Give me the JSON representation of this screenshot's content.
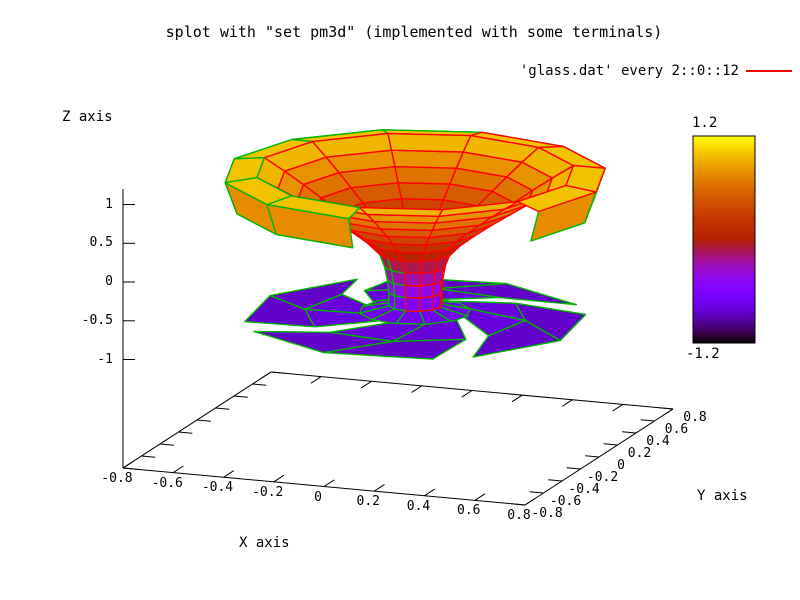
{
  "main": {
    "title": "splot with \"set pm3d\" (implemented with some terminals)"
  },
  "legend": {
    "label": "'glass.dat' every 2::0::12",
    "line_color": "#ff0000"
  },
  "axes": {
    "x": {
      "label": "X axis",
      "range": [
        -0.8,
        0.8
      ],
      "ticks": [
        -0.8,
        -0.6,
        -0.4,
        -0.2,
        0,
        0.2,
        0.4,
        0.6,
        0.8
      ],
      "tick_labels": [
        "-0.8",
        "-0.6",
        "-0.4",
        "-0.2",
        "0",
        "0.2",
        "0.4",
        "0.6",
        "0.8"
      ]
    },
    "y": {
      "label": "Y axis",
      "range": [
        -0.8,
        0.8
      ],
      "ticks": [
        -0.8,
        -0.6,
        -0.4,
        -0.2,
        0,
        0.2,
        0.4,
        0.6,
        0.8
      ],
      "tick_labels": [
        "-0.8",
        "-0.6",
        "-0.4",
        "-0.2",
        "0",
        "0.2",
        "0.4",
        "0.6",
        "0.8"
      ]
    },
    "z": {
      "label": "Z axis",
      "range": [
        -1.2,
        1.2
      ],
      "ticks": [
        -1,
        -0.5,
        0,
        0.5,
        1
      ],
      "tick_labels": [
        "-1",
        "-0.5",
        "0",
        "0.5",
        "1"
      ]
    }
  },
  "colorbar": {
    "max_label": "1.2",
    "min_label": "-1.2",
    "range": [
      -1.2,
      1.2
    ],
    "palette": "pm3d rgbformulae 7,5,15 (black-blue-violet-red-yellow)"
  },
  "chart_data": {
    "type": "surface3d",
    "title": "splot with \"set pm3d\" (implemented with some terminals)",
    "source_label": "'glass.dat' every 2::0::12",
    "zrange": [
      -1.2,
      1.2
    ],
    "grid": false,
    "legend_position": "top-right",
    "segments": 12,
    "center": [
      0.05,
      0.05
    ],
    "mesh_colors": {
      "inner": "#ff0000",
      "outer": "#00b400"
    },
    "bowl_profile": [
      [
        1.02,
        0.6
      ],
      [
        0.87,
        0.52
      ],
      [
        0.72,
        0.445
      ],
      [
        0.57,
        0.375
      ],
      [
        0.42,
        0.305
      ],
      [
        0.27,
        0.24
      ],
      [
        0.12,
        0.18
      ],
      [
        -0.03,
        0.135
      ],
      [
        -0.2,
        0.115
      ],
      [
        -0.37,
        0.105
      ],
      [
        -0.53,
        0.1
      ],
      [
        -0.7,
        0.1
      ]
    ],
    "lip_profile": [
      [
        1.02,
        0.6
      ],
      [
        0.97,
        0.72
      ],
      [
        0.56,
        0.675
      ]
    ],
    "lip_gap_deg": [
      270,
      330
    ],
    "base_ring": [
      [
        -0.7,
        0.1
      ],
      [
        -0.78,
        0.21
      ]
    ],
    "arms": {
      "angles_deg": [
        30,
        120,
        210,
        300
      ],
      "half_width_deg": 38,
      "twist_deg": -42,
      "radii": [
        0.21,
        0.42,
        0.64
      ],
      "z": [
        -0.78,
        -0.83,
        -0.87
      ]
    }
  }
}
